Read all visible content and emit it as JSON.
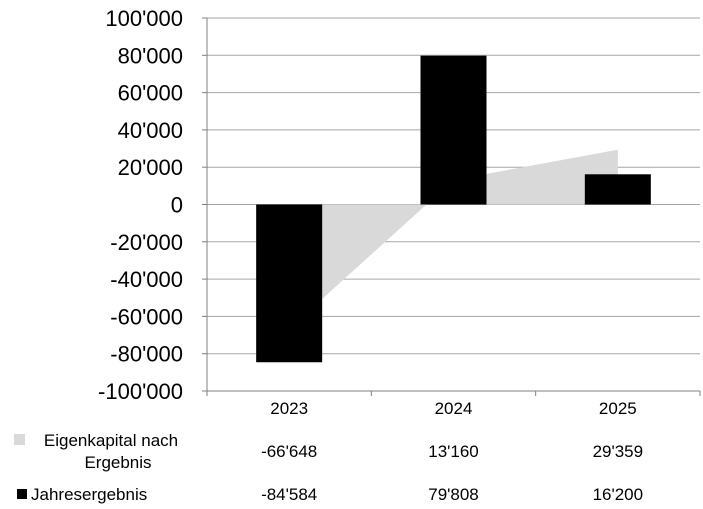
{
  "chart_data": {
    "type": "bar",
    "categories": [
      "2023",
      "2024",
      "2025"
    ],
    "series": [
      {
        "name": "Eigenkapital nach Ergebnis",
        "kind": "area",
        "color": "#d9d9d9",
        "values": [
          -66648,
          13160,
          29359
        ],
        "labels": [
          "-66'648",
          "13'160",
          "29'359"
        ]
      },
      {
        "name": "Jahresergebnis",
        "kind": "bar",
        "color": "#000000",
        "values": [
          -84584,
          79808,
          16200
        ],
        "labels": [
          "-84'584",
          "79'808",
          "16'200"
        ]
      }
    ],
    "ylim": [
      -100000,
      100000
    ],
    "yticks": [
      100000,
      80000,
      60000,
      40000,
      20000,
      0,
      -20000,
      -40000,
      -60000,
      -80000,
      -100000
    ],
    "ytick_labels": [
      "100'000",
      "80'000",
      "60'000",
      "40'000",
      "20'000",
      "0",
      "-20'000",
      "-40'000",
      "-60'000",
      "-80'000",
      "-100'000"
    ],
    "grid": true,
    "legend": "data-table-below",
    "legend_rows": [
      {
        "line1": "Eigenkapital nach",
        "line2": "Ergebnis"
      },
      {
        "line1": "Jahresergebnis",
        "line2": ""
      }
    ]
  }
}
